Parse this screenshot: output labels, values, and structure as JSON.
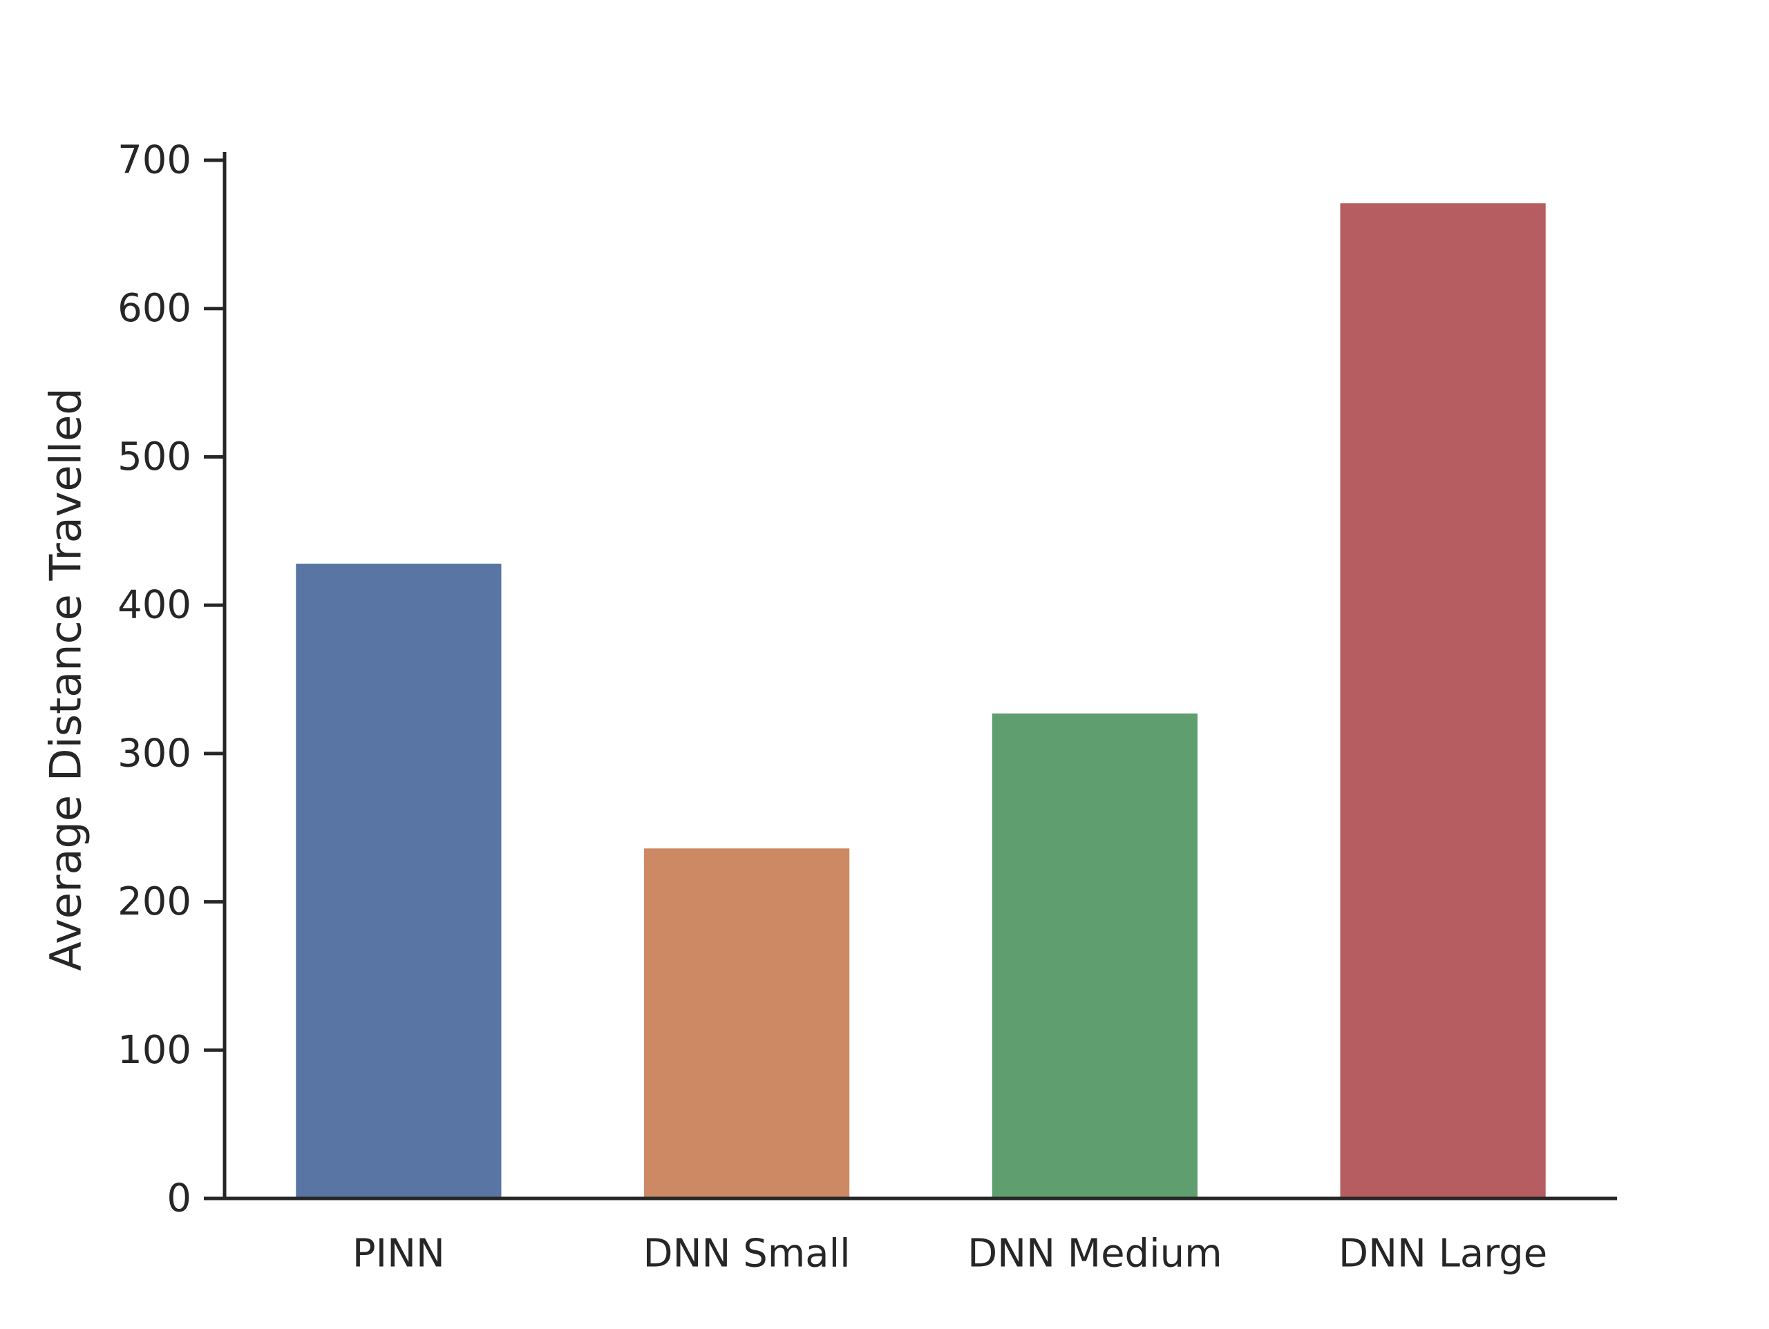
{
  "chart_data": {
    "type": "bar",
    "title": "",
    "xlabel": "",
    "ylabel": "Average Distance Travelled",
    "categories": [
      "PINN",
      "DNN Small",
      "DNN Medium",
      "DNN Large"
    ],
    "values": [
      428,
      236,
      327,
      671
    ],
    "colors": [
      "#5975a4",
      "#cc8963",
      "#5f9e6e",
      "#b55d60"
    ],
    "ylim": [
      0,
      700
    ],
    "yticks": [
      0,
      100,
      200,
      300,
      400,
      500,
      600,
      700
    ],
    "ytick_labels": [
      "0",
      "100",
      "200",
      "300",
      "400",
      "500",
      "600",
      "700"
    ],
    "grid": false,
    "legend": "none",
    "axis_color": "#262626"
  }
}
